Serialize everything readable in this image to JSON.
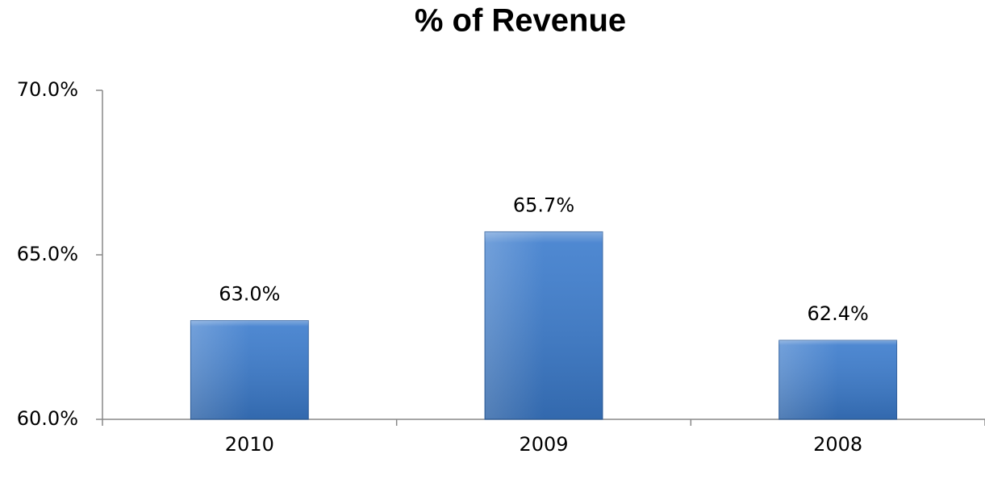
{
  "chart_data": {
    "type": "bar",
    "title": "% of Revenue",
    "categories": [
      "2010",
      "2009",
      "2008"
    ],
    "values": [
      63.0,
      65.7,
      62.4
    ],
    "value_labels": [
      "63.0%",
      "65.7%",
      "62.4%"
    ],
    "color": "#3b7bcc",
    "ylim": [
      60,
      70
    ],
    "yticks": [
      {
        "value": 60,
        "label": "60.0%"
      },
      {
        "value": 65,
        "label": "65.0%"
      },
      {
        "value": 70,
        "label": "70.0%"
      }
    ],
    "grid": false
  }
}
